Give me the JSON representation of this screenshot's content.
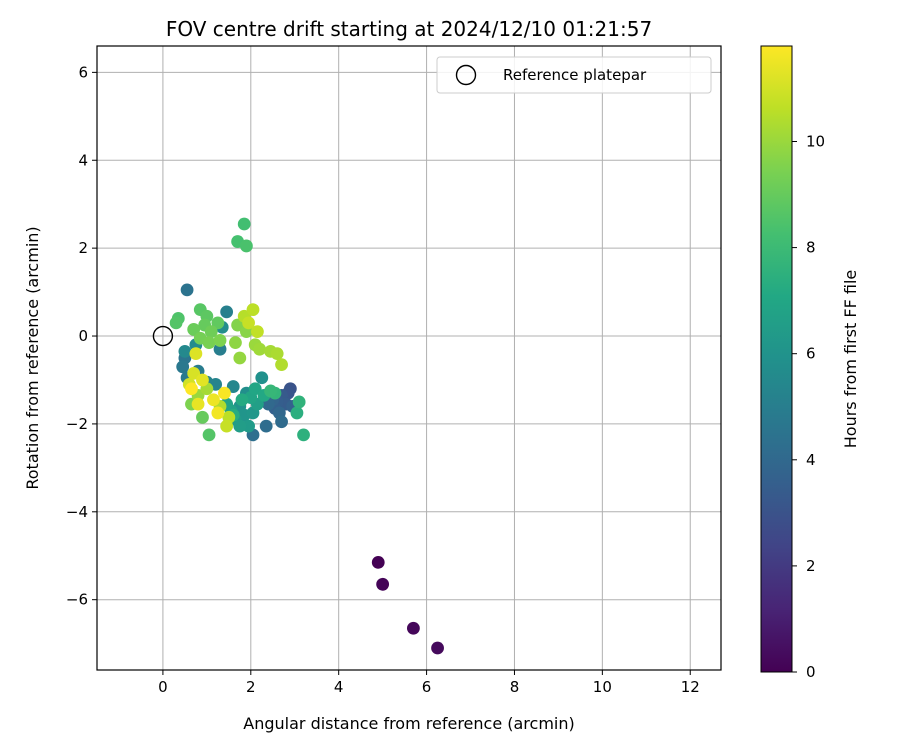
{
  "chart_data": {
    "type": "scatter",
    "title": "FOV centre drift starting at 2024/12/10 01:21:57",
    "xlabel": "Angular distance from reference (arcmin)",
    "ylabel": "Rotation from reference (arcmin)",
    "xlim": [
      -1.5,
      12.7
    ],
    "ylim": [
      -7.6,
      6.6
    ],
    "xticks": [
      0,
      2,
      4,
      6,
      8,
      10,
      12
    ],
    "yticks": [
      -6,
      -4,
      -2,
      0,
      2,
      4,
      6
    ],
    "grid": true,
    "legend": {
      "position": "top-right",
      "entries": [
        "Reference platepar"
      ]
    },
    "reference": {
      "x": 0,
      "y": 0,
      "label": "Reference platepar"
    },
    "colorbar": {
      "label": "Hours from first FF file",
      "min": 0,
      "max": 11.8,
      "ticks": [
        0,
        2,
        4,
        6,
        8,
        10
      ],
      "colormap": "viridis"
    },
    "points": [
      {
        "x": 4.9,
        "y": -5.15,
        "t": 0.0
      },
      {
        "x": 5.0,
        "y": -5.65,
        "t": 0.1
      },
      {
        "x": 5.7,
        "y": -6.65,
        "t": 0.2
      },
      {
        "x": 6.25,
        "y": -7.1,
        "t": 0.3
      },
      {
        "x": 2.9,
        "y": -1.2,
        "t": 3.0
      },
      {
        "x": 2.85,
        "y": -1.3,
        "t": 3.1
      },
      {
        "x": 2.75,
        "y": -1.45,
        "t": 3.2
      },
      {
        "x": 2.7,
        "y": -1.35,
        "t": 3.3
      },
      {
        "x": 2.8,
        "y": -1.55,
        "t": 3.4
      },
      {
        "x": 2.6,
        "y": -1.5,
        "t": 3.5
      },
      {
        "x": 2.55,
        "y": -1.65,
        "t": 3.6
      },
      {
        "x": 2.95,
        "y": -1.6,
        "t": 3.7
      },
      {
        "x": 2.5,
        "y": -1.45,
        "t": 3.8
      },
      {
        "x": 2.65,
        "y": -1.75,
        "t": 3.9
      },
      {
        "x": 2.4,
        "y": -1.55,
        "t": 4.0
      },
      {
        "x": 2.7,
        "y": -1.95,
        "t": 4.1
      },
      {
        "x": 2.35,
        "y": -2.05,
        "t": 4.2
      },
      {
        "x": 2.05,
        "y": -2.25,
        "t": 4.3
      },
      {
        "x": 0.55,
        "y": 1.05,
        "t": 4.5
      },
      {
        "x": 0.5,
        "y": -0.5,
        "t": 4.6
      },
      {
        "x": 0.45,
        "y": -0.7,
        "t": 4.7
      },
      {
        "x": 0.55,
        "y": -0.95,
        "t": 4.8
      },
      {
        "x": 0.8,
        "y": -0.8,
        "t": 4.9
      },
      {
        "x": 1.3,
        "y": -0.3,
        "t": 5.0
      },
      {
        "x": 1.45,
        "y": 0.55,
        "t": 5.1
      },
      {
        "x": 1.0,
        "y": -1.05,
        "t": 5.2
      },
      {
        "x": 1.2,
        "y": -1.1,
        "t": 5.3
      },
      {
        "x": 1.6,
        "y": -1.15,
        "t": 5.4
      },
      {
        "x": 0.5,
        "y": -0.35,
        "t": 5.5
      },
      {
        "x": 0.75,
        "y": -0.2,
        "t": 5.6
      },
      {
        "x": 1.35,
        "y": 0.2,
        "t": 5.7
      },
      {
        "x": 1.9,
        "y": -1.3,
        "t": 5.8
      },
      {
        "x": 2.25,
        "y": -0.95,
        "t": 5.9
      },
      {
        "x": 1.75,
        "y": -1.6,
        "t": 6.0
      },
      {
        "x": 1.85,
        "y": -1.8,
        "t": 6.1
      },
      {
        "x": 2.05,
        "y": -1.75,
        "t": 6.2
      },
      {
        "x": 1.65,
        "y": -1.9,
        "t": 6.3
      },
      {
        "x": 1.95,
        "y": -2.05,
        "t": 6.4
      },
      {
        "x": 1.75,
        "y": -2.05,
        "t": 6.5
      },
      {
        "x": 2.15,
        "y": -1.55,
        "t": 6.6
      },
      {
        "x": 1.55,
        "y": -1.7,
        "t": 6.7
      },
      {
        "x": 1.45,
        "y": -1.55,
        "t": 6.8
      },
      {
        "x": 2.0,
        "y": -1.4,
        "t": 6.9
      },
      {
        "x": 2.1,
        "y": -1.2,
        "t": 7.0
      },
      {
        "x": 2.3,
        "y": -1.35,
        "t": 7.1
      },
      {
        "x": 1.8,
        "y": -1.45,
        "t": 7.2
      },
      {
        "x": 1.6,
        "y": -1.8,
        "t": 7.3
      },
      {
        "x": 3.05,
        "y": -1.75,
        "t": 7.4
      },
      {
        "x": 3.2,
        "y": -2.25,
        "t": 7.5
      },
      {
        "x": 3.1,
        "y": -1.5,
        "t": 7.6
      },
      {
        "x": 2.55,
        "y": -1.3,
        "t": 7.7
      },
      {
        "x": 2.45,
        "y": -1.25,
        "t": 7.8
      },
      {
        "x": 1.85,
        "y": 2.55,
        "t": 8.2
      },
      {
        "x": 1.7,
        "y": 2.15,
        "t": 8.3
      },
      {
        "x": 1.9,
        "y": 2.05,
        "t": 8.4
      },
      {
        "x": 0.35,
        "y": 0.4,
        "t": 8.5
      },
      {
        "x": 0.3,
        "y": 0.3,
        "t": 8.6
      },
      {
        "x": 0.85,
        "y": 0.6,
        "t": 8.7
      },
      {
        "x": 1.0,
        "y": 0.45,
        "t": 8.8
      },
      {
        "x": 1.25,
        "y": 0.3,
        "t": 8.9
      },
      {
        "x": 0.95,
        "y": 0.25,
        "t": 9.0
      },
      {
        "x": 0.7,
        "y": 0.15,
        "t": 9.1
      },
      {
        "x": 1.1,
        "y": 0.1,
        "t": 9.2
      },
      {
        "x": 0.85,
        "y": -0.05,
        "t": 9.3
      },
      {
        "x": 1.05,
        "y": -0.15,
        "t": 9.4
      },
      {
        "x": 1.3,
        "y": -0.1,
        "t": 9.5
      },
      {
        "x": 1.7,
        "y": 0.25,
        "t": 9.6
      },
      {
        "x": 1.9,
        "y": 0.1,
        "t": 9.7
      },
      {
        "x": 1.65,
        "y": -0.15,
        "t": 9.8
      },
      {
        "x": 1.75,
        "y": -0.5,
        "t": 9.9
      },
      {
        "x": 2.1,
        "y": -0.2,
        "t": 10.0
      },
      {
        "x": 2.2,
        "y": -0.3,
        "t": 10.1
      },
      {
        "x": 2.45,
        "y": -0.35,
        "t": 10.2
      },
      {
        "x": 2.6,
        "y": -0.4,
        "t": 10.3
      },
      {
        "x": 2.7,
        "y": -0.65,
        "t": 10.4
      },
      {
        "x": 1.85,
        "y": 0.45,
        "t": 10.5
      },
      {
        "x": 2.05,
        "y": 0.6,
        "t": 10.6
      },
      {
        "x": 2.15,
        "y": 0.1,
        "t": 10.7
      },
      {
        "x": 1.95,
        "y": 0.3,
        "t": 10.8
      },
      {
        "x": 1.05,
        "y": -2.25,
        "t": 8.6
      },
      {
        "x": 0.9,
        "y": -1.85,
        "t": 9.0
      },
      {
        "x": 0.65,
        "y": -1.55,
        "t": 9.5
      },
      {
        "x": 0.8,
        "y": -1.35,
        "t": 10.0
      },
      {
        "x": 1.0,
        "y": -1.2,
        "t": 10.2
      },
      {
        "x": 1.3,
        "y": -1.6,
        "t": 10.4
      },
      {
        "x": 1.5,
        "y": -1.85,
        "t": 10.6
      },
      {
        "x": 1.45,
        "y": -2.05,
        "t": 10.8
      },
      {
        "x": 0.6,
        "y": -1.1,
        "t": 11.0
      },
      {
        "x": 0.7,
        "y": -0.85,
        "t": 11.1
      },
      {
        "x": 0.75,
        "y": -0.4,
        "t": 11.2
      },
      {
        "x": 0.9,
        "y": -1.0,
        "t": 11.3
      },
      {
        "x": 0.8,
        "y": -1.55,
        "t": 11.4
      },
      {
        "x": 1.15,
        "y": -1.45,
        "t": 11.5
      },
      {
        "x": 1.25,
        "y": -1.75,
        "t": 11.6
      },
      {
        "x": 1.4,
        "y": -1.3,
        "t": 11.7
      },
      {
        "x": 0.65,
        "y": -1.2,
        "t": 11.8
      }
    ]
  }
}
